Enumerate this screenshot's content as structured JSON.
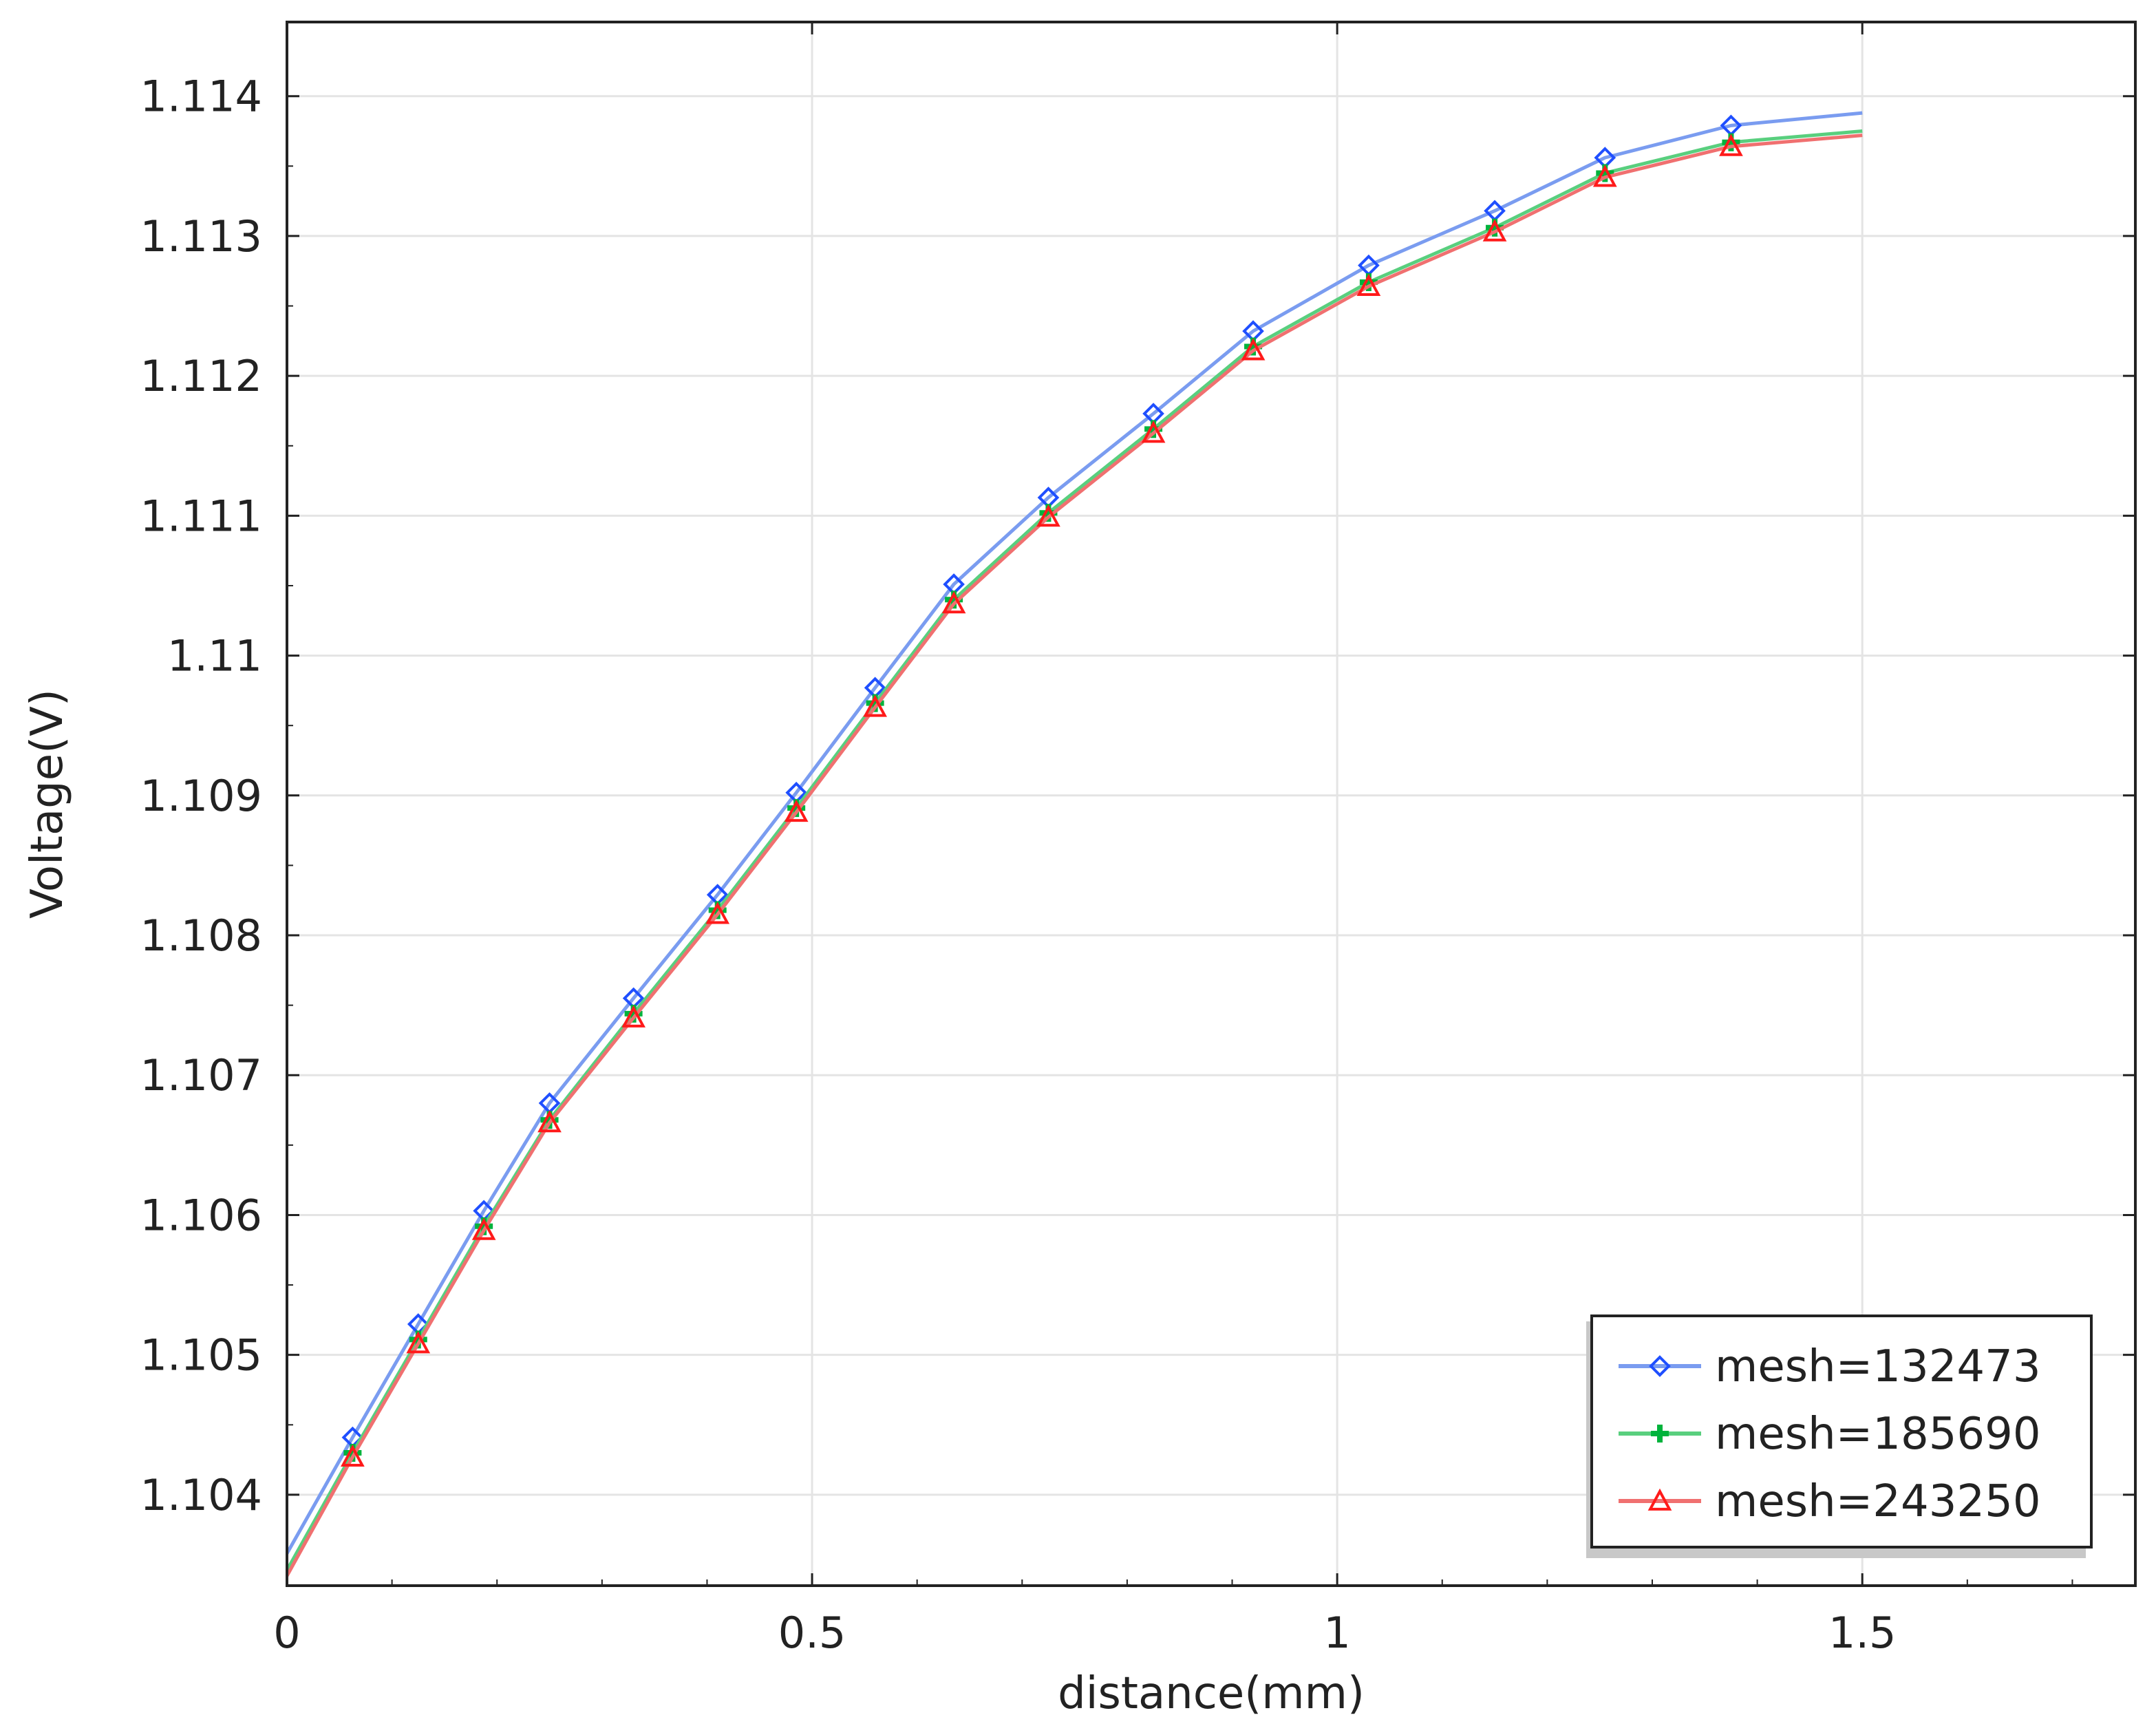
{
  "chart_data": {
    "type": "line",
    "title": "",
    "xlabel": "distance(mm)",
    "ylabel": "Voltage(V)",
    "xlim": [
      0,
      1.76
    ],
    "ylim": [
      1.10335,
      1.11453
    ],
    "xticks": [
      0,
      0.5,
      1,
      1.5
    ],
    "xtick_labels": [
      "0",
      "0.5",
      "1",
      "1.5"
    ],
    "yticks": [
      1.104,
      1.105,
      1.106,
      1.107,
      1.108,
      1.109,
      1.11,
      1.111,
      1.112,
      1.113,
      1.114
    ],
    "ytick_labels": [
      "1.104",
      "1.105",
      "1.106",
      "1.107",
      "1.108",
      "1.109",
      "1.11",
      "1.111",
      "1.112",
      "1.113",
      "1.114"
    ],
    "grid": true,
    "legend_position": "bottom-right",
    "series": [
      {
        "name": "mesh=132473",
        "color": "#1f4fff",
        "line_color": "#7a9cf0",
        "marker": "diamond",
        "x": [
          0,
          0.0625,
          0.125,
          0.1875,
          0.25,
          0.33,
          0.41,
          0.485,
          0.56,
          0.635,
          0.725,
          0.825,
          0.92,
          1.03,
          1.15,
          1.255,
          1.375,
          1.5
        ],
        "y": [
          1.10358,
          1.10441,
          1.10522,
          1.10603,
          1.1068,
          1.10755,
          1.10829,
          1.10902,
          1.10977,
          1.11051,
          1.11113,
          1.11173,
          1.11232,
          1.11279,
          1.11318,
          1.11356,
          1.11379,
          1.11388
        ],
        "marker_x": [
          0.0625,
          0.125,
          0.1875,
          0.25,
          0.33,
          0.41,
          0.485,
          0.56,
          0.635,
          0.725,
          0.825,
          0.92,
          1.03,
          1.15,
          1.255,
          1.375
        ],
        "marker_y": [
          1.10441,
          1.10522,
          1.10603,
          1.1068,
          1.10755,
          1.10829,
          1.10902,
          1.10977,
          1.11051,
          1.11113,
          1.11173,
          1.11232,
          1.11279,
          1.11318,
          1.11356,
          1.11379
        ]
      },
      {
        "name": "mesh=185690",
        "color": "#00b33c",
        "line_color": "#59cf7e",
        "marker": "plus",
        "x": [
          0,
          0.0625,
          0.125,
          0.1875,
          0.25,
          0.33,
          0.41,
          0.485,
          0.56,
          0.635,
          0.725,
          0.825,
          0.92,
          1.03,
          1.15,
          1.255,
          1.375,
          1.5
        ],
        "y": [
          1.10346,
          1.1043,
          1.10511,
          1.10592,
          1.10668,
          1.10744,
          1.10818,
          1.10891,
          1.10966,
          1.1104,
          1.11102,
          1.11162,
          1.11221,
          1.11267,
          1.11306,
          1.11345,
          1.11367,
          1.11375
        ],
        "marker_x": [
          0.0625,
          0.125,
          0.1875,
          0.25,
          0.33,
          0.41,
          0.485,
          0.56,
          0.635,
          0.725,
          0.825,
          0.92,
          1.03,
          1.15,
          1.255,
          1.375
        ],
        "marker_y": [
          1.1043,
          1.10511,
          1.10592,
          1.10668,
          1.10744,
          1.10818,
          1.10891,
          1.10966,
          1.1104,
          1.11102,
          1.11162,
          1.11221,
          1.11267,
          1.11306,
          1.11345,
          1.11367
        ]
      },
      {
        "name": "mesh=243250",
        "color": "#ff1a1a",
        "line_color": "#f07070",
        "marker": "triangle",
        "x": [
          0,
          0.0625,
          0.125,
          0.1875,
          0.25,
          0.33,
          0.41,
          0.485,
          0.56,
          0.635,
          0.725,
          0.825,
          0.92,
          1.03,
          1.15,
          1.255,
          1.375,
          1.5
        ],
        "y": [
          1.10342,
          1.10427,
          1.10508,
          1.10589,
          1.10666,
          1.10741,
          1.10815,
          1.10888,
          1.10963,
          1.11037,
          1.11099,
          1.11159,
          1.11218,
          1.11264,
          1.11303,
          1.11342,
          1.11364,
          1.11372
        ],
        "marker_x": [
          0.0625,
          0.125,
          0.1875,
          0.25,
          0.33,
          0.41,
          0.485,
          0.56,
          0.635,
          0.725,
          0.825,
          0.92,
          1.03,
          1.15,
          1.255,
          1.375
        ],
        "marker_y": [
          1.10427,
          1.10508,
          1.10589,
          1.10666,
          1.10741,
          1.10815,
          1.10888,
          1.10963,
          1.11037,
          1.11099,
          1.11159,
          1.11218,
          1.11264,
          1.11303,
          1.11342,
          1.11364
        ]
      }
    ]
  }
}
